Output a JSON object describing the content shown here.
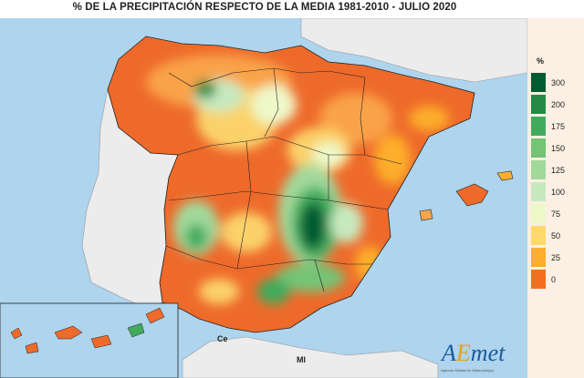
{
  "title": "% DE LA PRECIPITACIÓN RESPECTO DE LA MEDIA 1981-2010 - JULIO 2020",
  "legend": {
    "unit": "%",
    "ticks": [
      "300",
      "200",
      "175",
      "150",
      "125",
      "100",
      "75",
      "50",
      "25",
      "0"
    ],
    "colors": [
      "#005a32",
      "#238b45",
      "#41ab5d",
      "#74c476",
      "#a1d99b",
      "#c7e9c0",
      "#eef8c8",
      "#ffd86b",
      "#fdae2c",
      "#f46d21"
    ]
  },
  "labels": {
    "ceuta": "Ce",
    "melilla": "Ml"
  },
  "logo": {
    "text": "AEmet",
    "subtitle": "Agencia Estatal de Meteorología"
  },
  "colors": {
    "sea": "#aed4ee",
    "land_other": "#ececec",
    "base_anomaly": "#ee6a2a"
  }
}
